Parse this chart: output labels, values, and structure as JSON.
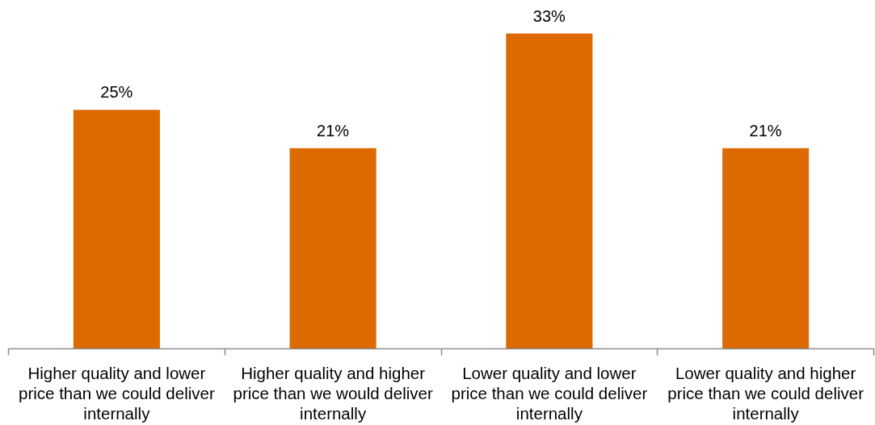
{
  "chart_data": {
    "type": "bar",
    "categories": [
      "Higher quality and lower price than we could deliver internally",
      "Higher quality and higher price than we would deliver internally",
      "Lower quality and lower price than we could deliver internally",
      "Lower quality and higher price than we could deliver internally"
    ],
    "values": [
      25,
      21,
      33,
      21
    ],
    "value_labels": [
      "25%",
      "21%",
      "33%",
      "21%"
    ],
    "color": "#dd6a00",
    "tick_labels": "x"
  }
}
